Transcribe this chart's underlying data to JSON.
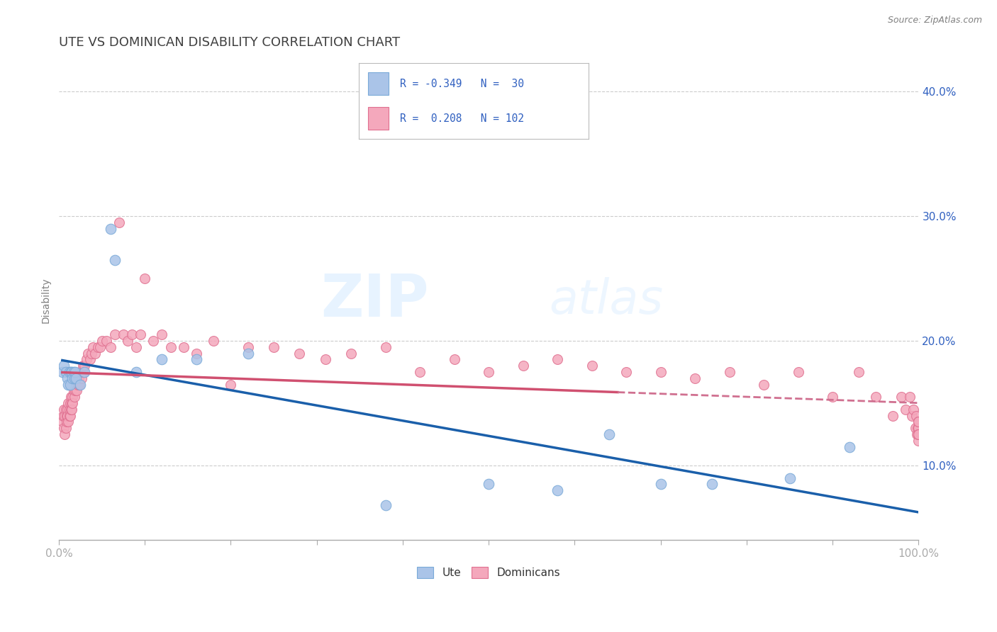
{
  "title": "UTE VS DOMINICAN DISABILITY CORRELATION CHART",
  "source": "Source: ZipAtlas.com",
  "ylabel": "Disability",
  "watermark_zip": "ZIP",
  "watermark_atlas": "atlas",
  "ute_color": "#aac4e8",
  "dominican_color": "#f4a8bc",
  "ute_edge_color": "#7aaad8",
  "dominican_edge_color": "#e07090",
  "ute_line_color": "#1a5faa",
  "dominican_line_color": "#d05070",
  "dominican_line_dashed_color": "#d07090",
  "legend_ute_color": "#aac4e8",
  "legend_dom_color": "#f4a8bc",
  "legend_text_color": "#3060c0",
  "ute_R": -0.349,
  "ute_N": 30,
  "dominican_R": 0.208,
  "dominican_N": 102,
  "xlim": [
    0,
    1
  ],
  "ylim": [
    0.04,
    0.425
  ],
  "yticks": [
    0.1,
    0.2,
    0.3,
    0.4
  ],
  "ytick_labels": [
    "10.0%",
    "20.0%",
    "30.0%",
    "40.0%"
  ],
  "xtick_positions": [
    0.0,
    0.1,
    0.2,
    0.3,
    0.4,
    0.5,
    0.6,
    0.7,
    0.8,
    0.9,
    1.0
  ],
  "grid_color": "#cccccc",
  "background_color": "#ffffff",
  "title_color": "#404040",
  "axis_label_color": "#3060c0",
  "title_fontsize": 13,
  "tick_fontsize": 11,
  "ute_x": [
    0.004,
    0.006,
    0.008,
    0.01,
    0.011,
    0.012,
    0.013,
    0.014,
    0.015,
    0.016,
    0.017,
    0.018,
    0.019,
    0.02,
    0.025,
    0.03,
    0.06,
    0.065,
    0.09,
    0.12,
    0.16,
    0.22,
    0.38,
    0.5,
    0.58,
    0.64,
    0.7,
    0.76,
    0.85,
    0.92
  ],
  "ute_y": [
    0.175,
    0.18,
    0.175,
    0.17,
    0.165,
    0.175,
    0.165,
    0.175,
    0.175,
    0.17,
    0.175,
    0.17,
    0.175,
    0.17,
    0.165,
    0.175,
    0.29,
    0.265,
    0.175,
    0.185,
    0.185,
    0.19,
    0.068,
    0.085,
    0.08,
    0.125,
    0.085,
    0.085,
    0.09,
    0.115
  ],
  "dom_x": [
    0.004,
    0.005,
    0.006,
    0.006,
    0.007,
    0.007,
    0.008,
    0.008,
    0.009,
    0.009,
    0.01,
    0.01,
    0.011,
    0.011,
    0.012,
    0.012,
    0.013,
    0.013,
    0.014,
    0.014,
    0.015,
    0.015,
    0.016,
    0.016,
    0.017,
    0.018,
    0.019,
    0.02,
    0.021,
    0.022,
    0.023,
    0.024,
    0.025,
    0.026,
    0.027,
    0.028,
    0.029,
    0.03,
    0.032,
    0.034,
    0.036,
    0.038,
    0.04,
    0.042,
    0.045,
    0.048,
    0.05,
    0.055,
    0.06,
    0.065,
    0.07,
    0.075,
    0.08,
    0.085,
    0.09,
    0.095,
    0.1,
    0.11,
    0.12,
    0.13,
    0.145,
    0.16,
    0.18,
    0.2,
    0.22,
    0.25,
    0.28,
    0.31,
    0.34,
    0.38,
    0.42,
    0.46,
    0.5,
    0.54,
    0.58,
    0.62,
    0.66,
    0.7,
    0.74,
    0.78,
    0.82,
    0.86,
    0.9,
    0.93,
    0.95,
    0.97,
    0.98,
    0.985,
    0.99,
    0.992,
    0.994,
    0.996,
    0.997,
    0.998,
    0.999,
    1.0,
    1.0,
    1.0,
    1.0,
    1.0,
    1.0,
    1.0
  ],
  "dom_y": [
    0.135,
    0.14,
    0.13,
    0.145,
    0.125,
    0.14,
    0.13,
    0.145,
    0.135,
    0.14,
    0.145,
    0.14,
    0.135,
    0.15,
    0.14,
    0.145,
    0.14,
    0.15,
    0.145,
    0.155,
    0.15,
    0.145,
    0.155,
    0.15,
    0.16,
    0.155,
    0.16,
    0.165,
    0.16,
    0.165,
    0.17,
    0.165,
    0.175,
    0.17,
    0.175,
    0.18,
    0.175,
    0.18,
    0.185,
    0.19,
    0.185,
    0.19,
    0.195,
    0.19,
    0.195,
    0.195,
    0.2,
    0.2,
    0.195,
    0.205,
    0.295,
    0.205,
    0.2,
    0.205,
    0.195,
    0.205,
    0.25,
    0.2,
    0.205,
    0.195,
    0.195,
    0.19,
    0.2,
    0.165,
    0.195,
    0.195,
    0.19,
    0.185,
    0.19,
    0.195,
    0.175,
    0.185,
    0.175,
    0.18,
    0.185,
    0.18,
    0.175,
    0.175,
    0.17,
    0.175,
    0.165,
    0.175,
    0.155,
    0.175,
    0.155,
    0.14,
    0.155,
    0.145,
    0.155,
    0.14,
    0.145,
    0.13,
    0.14,
    0.125,
    0.13,
    0.13,
    0.135,
    0.125,
    0.135,
    0.12,
    0.125,
    0.125
  ]
}
